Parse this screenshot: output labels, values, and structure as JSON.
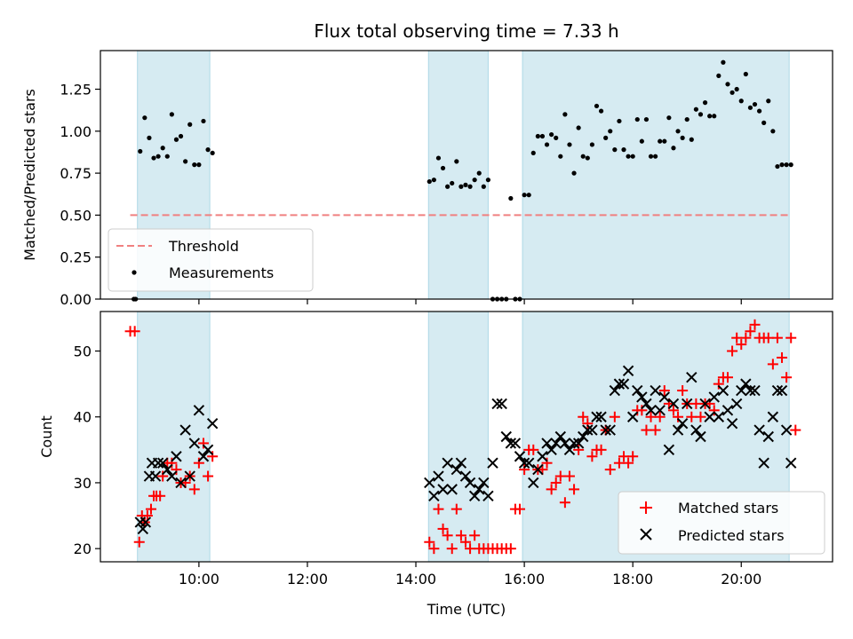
{
  "chart_data": [
    {
      "type": "scatter",
      "title": "Flux total observing time = 7.33 h",
      "ylabel": "Matched/Predicted stars",
      "xlabel": "",
      "xlim": [
        "08:11",
        "21:41"
      ],
      "ylim": [
        0,
        1.48
      ],
      "yticks": [
        "0.00",
        "0.25",
        "0.50",
        "0.75",
        "1.00",
        "1.25"
      ],
      "grid": false,
      "legend_position": "bottom-left",
      "shaded_intervals": [
        [
          "08:52",
          "10:12"
        ],
        [
          "14:14",
          "15:20"
        ],
        [
          "15:58",
          "20:53"
        ]
      ],
      "threshold": {
        "name": "Threshold",
        "value": 0.5,
        "x_range": [
          "08:44",
          "20:53"
        ],
        "color": "#f08080"
      },
      "measurements": {
        "name": "Measurements",
        "color": "#000000",
        "x": [
          "08:48",
          "08:50",
          "08:55",
          "09:00",
          "09:05",
          "09:10",
          "09:15",
          "09:20",
          "09:25",
          "09:30",
          "09:35",
          "09:40",
          "09:45",
          "09:50",
          "09:55",
          "10:00",
          "10:05",
          "10:10",
          "10:15",
          "14:15",
          "14:20",
          "14:25",
          "14:30",
          "14:35",
          "14:40",
          "14:45",
          "14:50",
          "14:55",
          "15:00",
          "15:05",
          "15:10",
          "15:15",
          "15:20",
          "15:25",
          "15:30",
          "15:35",
          "15:40",
          "15:45",
          "15:50",
          "15:55",
          "16:00",
          "16:05",
          "16:10",
          "16:15",
          "16:20",
          "16:25",
          "16:30",
          "16:35",
          "16:40",
          "16:45",
          "16:50",
          "16:55",
          "17:00",
          "17:05",
          "17:10",
          "17:15",
          "17:20",
          "17:25",
          "17:30",
          "17:35",
          "17:40",
          "17:45",
          "17:50",
          "17:55",
          "18:00",
          "18:05",
          "18:10",
          "18:15",
          "18:20",
          "18:25",
          "18:30",
          "18:35",
          "18:40",
          "18:45",
          "18:50",
          "18:55",
          "19:00",
          "19:05",
          "19:10",
          "19:15",
          "19:20",
          "19:25",
          "19:30",
          "19:35",
          "19:40",
          "19:45",
          "19:50",
          "19:55",
          "20:00",
          "20:05",
          "20:10",
          "20:15",
          "20:20",
          "20:25",
          "20:30",
          "20:35",
          "20:40",
          "20:45",
          "20:50",
          "20:55"
        ],
        "y": [
          0.0,
          0.0,
          0.88,
          1.08,
          0.96,
          0.84,
          0.85,
          0.9,
          0.85,
          1.1,
          0.95,
          0.97,
          0.82,
          1.04,
          0.8,
          0.8,
          1.06,
          0.89,
          0.87,
          0.7,
          0.71,
          0.84,
          0.78,
          0.67,
          0.69,
          0.82,
          0.67,
          0.68,
          0.67,
          0.71,
          0.75,
          0.67,
          0.71,
          0.0,
          0.0,
          0.0,
          0.0,
          0.6,
          0.0,
          0.0,
          0.62,
          0.62,
          0.87,
          0.97,
          0.97,
          0.92,
          0.98,
          0.96,
          0.85,
          1.1,
          0.92,
          0.75,
          1.02,
          0.85,
          0.84,
          0.92,
          1.15,
          1.12,
          0.96,
          1.0,
          0.89,
          1.06,
          0.89,
          0.85,
          0.85,
          1.07,
          0.94,
          1.07,
          0.85,
          0.85,
          0.94,
          0.94,
          1.08,
          0.9,
          1.0,
          0.96,
          1.07,
          0.95,
          1.13,
          1.1,
          1.17,
          1.09,
          1.09,
          1.33,
          1.41,
          1.28,
          1.23,
          1.25,
          1.18,
          1.34,
          1.14,
          1.16,
          1.12,
          1.05,
          1.18,
          1.0,
          0.79,
          0.8,
          0.8,
          0.8
        ]
      }
    },
    {
      "type": "scatter",
      "title": "",
      "ylabel": "Count",
      "xlabel": "Time (UTC)",
      "xlim": [
        "08:11",
        "21:41"
      ],
      "ylim": [
        18,
        56
      ],
      "yticks": [
        "20",
        "30",
        "40",
        "50"
      ],
      "xticks": [
        "10:00",
        "12:00",
        "14:00",
        "16:00",
        "18:00",
        "20:00"
      ],
      "grid": false,
      "legend_position": "bottom-right",
      "shaded_intervals": [
        [
          "08:52",
          "10:12"
        ],
        [
          "14:14",
          "15:20"
        ],
        [
          "15:58",
          "20:53"
        ]
      ],
      "series": [
        {
          "name": "Matched stars",
          "marker": "plus",
          "color": "#ff0000",
          "x": [
            "08:44",
            "08:49",
            "08:54",
            "08:57",
            "09:00",
            "09:03",
            "09:07",
            "09:10",
            "09:13",
            "09:17",
            "09:20",
            "09:25",
            "09:30",
            "09:35",
            "09:40",
            "09:45",
            "09:50",
            "09:55",
            "10:00",
            "10:05",
            "10:10",
            "10:15",
            "14:15",
            "14:20",
            "14:25",
            "14:30",
            "14:35",
            "14:40",
            "14:45",
            "14:50",
            "14:55",
            "15:00",
            "15:05",
            "15:10",
            "15:15",
            "15:20",
            "15:25",
            "15:30",
            "15:35",
            "15:40",
            "15:45",
            "15:50",
            "15:55",
            "16:00",
            "16:05",
            "16:10",
            "16:15",
            "16:20",
            "16:25",
            "16:30",
            "16:35",
            "16:40",
            "16:45",
            "16:50",
            "16:55",
            "17:00",
            "17:05",
            "17:10",
            "17:15",
            "17:20",
            "17:25",
            "17:30",
            "17:35",
            "17:40",
            "17:45",
            "17:50",
            "17:55",
            "18:00",
            "18:05",
            "18:10",
            "18:15",
            "18:20",
            "18:25",
            "18:30",
            "18:35",
            "18:40",
            "18:45",
            "18:50",
            "18:55",
            "19:00",
            "19:05",
            "19:10",
            "19:15",
            "19:20",
            "19:25",
            "19:30",
            "19:35",
            "19:40",
            "19:45",
            "19:50",
            "19:55",
            "20:00",
            "20:05",
            "20:10",
            "20:15",
            "20:20",
            "20:25",
            "20:30",
            "20:35",
            "20:40",
            "20:45",
            "20:50",
            "20:55",
            "21:00"
          ],
          "y": [
            53,
            53,
            21,
            25,
            24,
            25,
            26,
            28,
            28,
            28,
            31,
            33,
            33,
            32,
            30,
            30,
            31,
            29,
            33,
            36,
            31,
            34,
            21,
            20,
            26,
            23,
            22,
            20,
            26,
            22,
            21,
            20,
            22,
            20,
            20,
            20,
            20,
            20,
            20,
            20,
            20,
            26,
            26,
            32,
            35,
            35,
            32,
            32,
            33,
            29,
            30,
            31,
            27,
            31,
            29,
            35,
            40,
            39,
            34,
            35,
            35,
            38,
            32,
            40,
            33,
            34,
            33,
            34,
            41,
            41,
            38,
            40,
            38,
            40,
            44,
            42,
            41,
            40,
            44,
            42,
            40,
            42,
            40,
            42,
            42,
            41,
            45,
            46,
            46,
            50,
            52,
            51,
            52,
            53,
            54,
            52,
            52,
            52,
            48,
            52,
            49,
            46,
            52,
            38
          ]
        },
        {
          "name": "Predicted stars",
          "marker": "x",
          "color": "#000000",
          "x": [
            "08:55",
            "08:58",
            "09:01",
            "09:05",
            "09:08",
            "09:12",
            "09:15",
            "09:20",
            "09:25",
            "09:30",
            "09:35",
            "09:40",
            "09:45",
            "09:50",
            "09:55",
            "10:00",
            "10:05",
            "10:10",
            "10:15",
            "14:15",
            "14:20",
            "14:25",
            "14:30",
            "14:35",
            "14:40",
            "14:45",
            "14:50",
            "14:55",
            "15:00",
            "15:05",
            "15:10",
            "15:15",
            "15:20",
            "15:25",
            "15:30",
            "15:35",
            "15:40",
            "15:45",
            "15:50",
            "15:55",
            "16:00",
            "16:05",
            "16:10",
            "16:15",
            "16:20",
            "16:25",
            "16:30",
            "16:35",
            "16:40",
            "16:45",
            "16:50",
            "16:55",
            "17:00",
            "17:05",
            "17:10",
            "17:15",
            "17:20",
            "17:25",
            "17:30",
            "17:35",
            "17:40",
            "17:45",
            "17:50",
            "17:55",
            "18:00",
            "18:05",
            "18:10",
            "18:15",
            "18:20",
            "18:25",
            "18:30",
            "18:35",
            "18:40",
            "18:45",
            "18:50",
            "18:55",
            "19:00",
            "19:05",
            "19:10",
            "19:15",
            "19:20",
            "19:25",
            "19:30",
            "19:35",
            "19:40",
            "19:45",
            "19:50",
            "19:55",
            "20:00",
            "20:05",
            "20:10",
            "20:15",
            "20:20",
            "20:25",
            "20:30",
            "20:35",
            "20:40",
            "20:45",
            "20:50",
            "20:55"
          ],
          "y": [
            24,
            23,
            24,
            31,
            33,
            31,
            33,
            33,
            32,
            31,
            34,
            30,
            38,
            31,
            36,
            41,
            34,
            35,
            39,
            30,
            28,
            31,
            29,
            33,
            29,
            32,
            33,
            31,
            30,
            28,
            29,
            30,
            28,
            33,
            42,
            42,
            37,
            36,
            36,
            34,
            33,
            33,
            30,
            32,
            34,
            36,
            35,
            36,
            37,
            36,
            35,
            36,
            36,
            37,
            38,
            38,
            40,
            40,
            38,
            38,
            44,
            45,
            45,
            47,
            40,
            44,
            43,
            42,
            41,
            44,
            41,
            43,
            35,
            42,
            38,
            39,
            42,
            46,
            38,
            37,
            42,
            40,
            43,
            40,
            44,
            41,
            39,
            42,
            44,
            45,
            44,
            44,
            38,
            33,
            37,
            40,
            44,
            44,
            38,
            33
          ]
        }
      ]
    }
  ]
}
